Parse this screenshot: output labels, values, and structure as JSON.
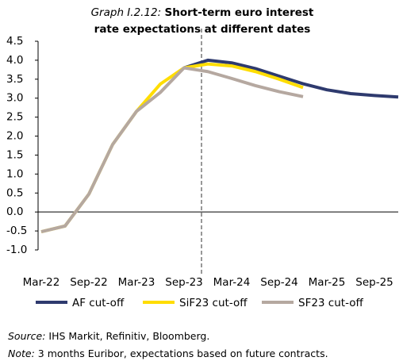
{
  "chart_data": {
    "type": "line",
    "title_label": "Graph I.2.12:",
    "title": "Short-term euro interest rate expectations at different dates",
    "categories": [
      "Mar-22",
      null,
      "Sep-22",
      null,
      "Mar-23",
      null,
      "Sep-23",
      null,
      "Mar-24",
      null,
      "Sep-24",
      null,
      "Mar-25",
      null,
      "Sep-25",
      null
    ],
    "series": [
      {
        "name": "AF cut-off",
        "color": "#2e3a6e",
        "values": [
          null,
          null,
          null,
          null,
          null,
          null,
          3.8,
          4.0,
          3.93,
          3.78,
          3.58,
          3.38,
          3.22,
          3.12,
          3.07,
          3.03
        ]
      },
      {
        "name": "SiF23 cut-off",
        "color": "#ffdd00",
        "values": [
          -0.52,
          -0.37,
          0.47,
          1.78,
          2.65,
          3.37,
          3.8,
          3.9,
          3.85,
          3.7,
          3.5,
          3.28,
          null,
          null,
          null,
          null
        ]
      },
      {
        "name": "SF23 cut-off",
        "color": "#b5a8a0",
        "values": [
          -0.52,
          -0.37,
          0.47,
          1.78,
          2.65,
          3.15,
          3.8,
          3.7,
          3.52,
          3.33,
          3.17,
          3.04,
          null,
          null,
          null,
          null
        ]
      }
    ],
    "ylim": [
      -1,
      4.5
    ],
    "yticks": [
      {
        "value": -1,
        "label": "-1.0"
      },
      -0.5,
      {
        "value": 0,
        "label": "0.0"
      },
      0.5,
      {
        "value": 1,
        "label": "1.0"
      },
      1.5,
      {
        "value": 2,
        "label": "2.0"
      },
      2.5,
      {
        "value": 3,
        "label": "3.0"
      },
      3.5,
      {
        "value": 4,
        "label": "4.0"
      },
      4.5
    ],
    "source_label": "Source:",
    "source": "IHS Markit, Refinitiv, Bloomberg.",
    "note_label": "Note:",
    "note": "3 months Euribor, expectations based on future contracts."
  }
}
